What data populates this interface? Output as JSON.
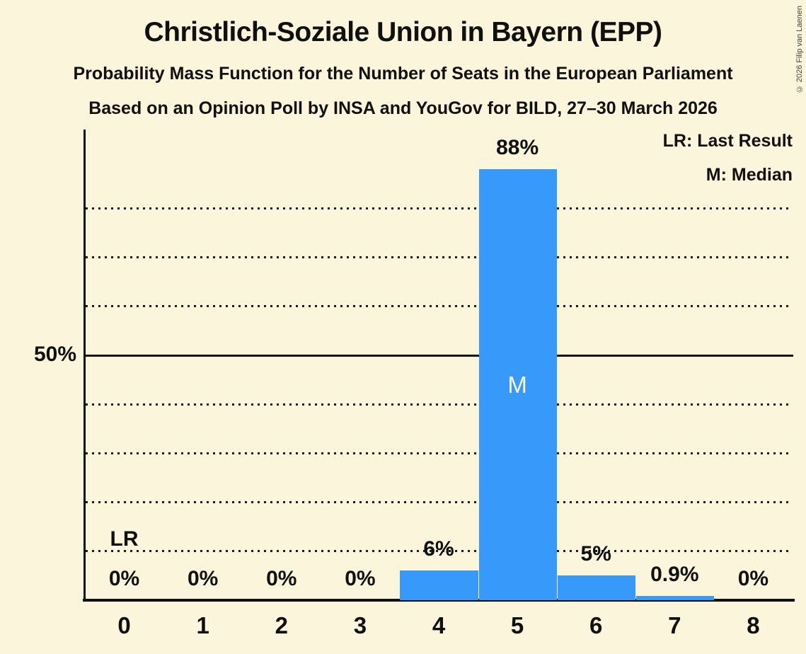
{
  "header": {
    "title": "Christlich-Soziale Union in Bayern (EPP)",
    "subtitle": "Probability Mass Function for the Number of Seats in the European Parliament",
    "source_line": "Based on an Opinion Poll by INSA and YouGov for BILD, 27–30 March 2026"
  },
  "copyright": "© 2026 Filip van Laenen",
  "legend": {
    "lr": "LR: Last Result",
    "m": "M: Median"
  },
  "chart_data": {
    "type": "bar",
    "title": "Christlich-Soziale Union in Bayern (EPP)",
    "categories": [
      "0",
      "1",
      "2",
      "3",
      "4",
      "5",
      "6",
      "7",
      "8"
    ],
    "values": [
      0,
      0,
      0,
      0,
      6,
      88,
      5,
      0.9,
      0
    ],
    "bar_labels": [
      "0%",
      "0%",
      "0%",
      "0%",
      "6%",
      "88%",
      "5%",
      "0.9%",
      "0%"
    ],
    "y_axis": {
      "tick_label": "50%",
      "solid_line_pct": 50,
      "dotted_gridlines_pct": [
        10,
        20,
        30,
        40,
        60,
        70,
        80
      ],
      "ylim": [
        0,
        96
      ]
    },
    "annotations": {
      "last_result": {
        "label": "LR",
        "seat_index": 0
      },
      "median": {
        "label": "M",
        "seat_index": 5
      }
    },
    "legend_position": "top-right",
    "grid": "dotted horizontal lines, solid line at 50%",
    "colors": {
      "bar": "#3799FA",
      "background": "#FBF5DC",
      "text": "#10100E",
      "median_label": "#FBF5DC"
    }
  }
}
